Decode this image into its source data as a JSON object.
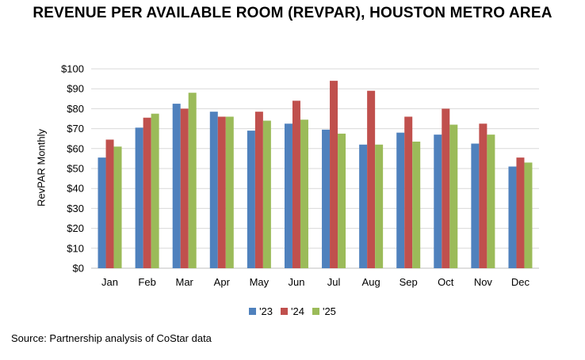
{
  "chart_data": {
    "type": "bar",
    "title": "REVENUE PER AVAILABLE ROOM (REVPAR), HOUSTON METRO AREA",
    "ylabel": "RevPAR Monthly",
    "xlabel": "",
    "ylim": [
      0,
      100
    ],
    "yticks": [
      0,
      10,
      20,
      30,
      40,
      50,
      60,
      70,
      80,
      90,
      100
    ],
    "ytick_labels": [
      "$0",
      "$10",
      "$20",
      "$30",
      "$40",
      "$50",
      "$60",
      "$70",
      "$80",
      "$90",
      "$100"
    ],
    "grid": true,
    "legend_position": "bottom",
    "categories": [
      "Jan",
      "Feb",
      "Mar",
      "Apr",
      "May",
      "Jun",
      "Jul",
      "Aug",
      "Sep",
      "Oct",
      "Nov",
      "Dec"
    ],
    "series": [
      {
        "name": "'23",
        "color": "#4f81bd",
        "values": [
          55.5,
          70.5,
          82.5,
          78.5,
          69,
          72.5,
          69.5,
          62,
          68,
          67,
          62.5,
          51
        ]
      },
      {
        "name": "'24",
        "color": "#c0504d",
        "values": [
          64.5,
          75.5,
          80,
          76,
          78.5,
          84,
          94,
          89,
          76,
          80,
          72.5,
          55.5
        ]
      },
      {
        "name": "'25",
        "color": "#9bbb59",
        "values": [
          61,
          77.5,
          88,
          76,
          74,
          74.5,
          67.5,
          62,
          63.5,
          72,
          67,
          53
        ]
      }
    ]
  },
  "source": "Source: Partnership analysis of CoStar data"
}
